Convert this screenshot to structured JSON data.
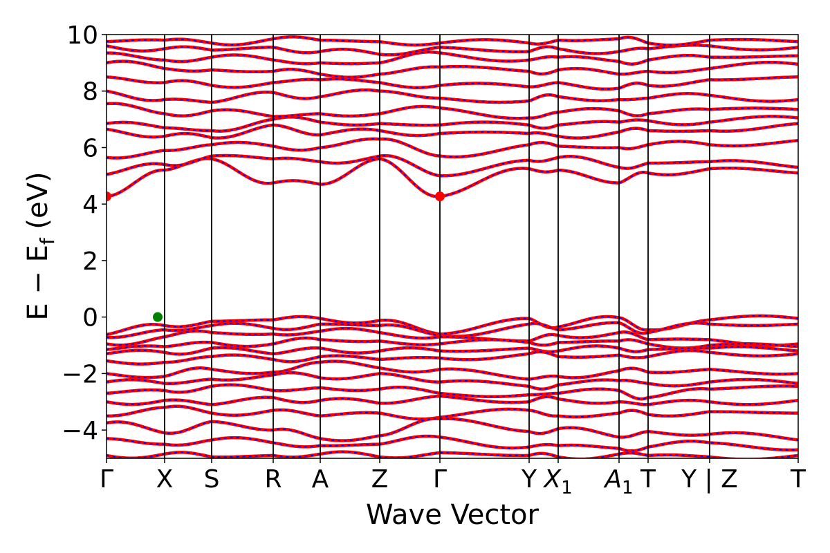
{
  "chart_data": {
    "type": "line",
    "title": "",
    "xlabel": "Wave Vector",
    "ylabel": {
      "base": "E − E",
      "sub": "f",
      "unit": " (eV)"
    },
    "ylim": [
      -5,
      10
    ],
    "yticks": [
      {
        "value": -4,
        "label": "−4"
      },
      {
        "value": -2,
        "label": "−2"
      },
      {
        "value": 0,
        "label": "0"
      },
      {
        "value": 2,
        "label": "2"
      },
      {
        "value": 4,
        "label": "4"
      },
      {
        "value": 6,
        "label": "6"
      },
      {
        "value": 8,
        "label": "8"
      },
      {
        "value": 10,
        "label": "10"
      }
    ],
    "grid": false,
    "kpoints": [
      {
        "label": "Γ",
        "sub": "",
        "pos": 0.0
      },
      {
        "label": "X",
        "sub": "",
        "pos": 0.84
      },
      {
        "label": "S",
        "sub": "",
        "pos": 1.52
      },
      {
        "label": "R",
        "sub": "",
        "pos": 2.41
      },
      {
        "label": "A",
        "sub": "",
        "pos": 3.09
      },
      {
        "label": "Z",
        "sub": "",
        "pos": 3.95
      },
      {
        "label": "Γ",
        "sub": "",
        "pos": 4.82
      },
      {
        "label": "Y",
        "sub": "",
        "pos": 6.11
      },
      {
        "label": "X",
        "sub": "1",
        "pos": 6.53
      },
      {
        "label": "A",
        "sub": "1",
        "pos": 7.41
      },
      {
        "label": "T",
        "sub": "",
        "pos": 7.83
      },
      {
        "label": "Y | Z",
        "sub": "",
        "pos": 8.72
      },
      {
        "label": "T",
        "sub": "",
        "pos": 10.0
      }
    ],
    "series": [
      {
        "style": "solid",
        "color": "#ff0000"
      },
      {
        "style": "dashed",
        "color": "#0000ff"
      }
    ],
    "band_gap_markers": [
      {
        "kind": "CBM",
        "k": 0.0,
        "e": 4.27,
        "color": "#ff0000"
      },
      {
        "kind": "CBM",
        "k": 4.82,
        "e": 4.27,
        "color": "#ff0000"
      },
      {
        "kind": "VBM",
        "k": 0.74,
        "e": 0.0,
        "color": "#008000"
      }
    ],
    "valence_bands": [
      [
        -0.62,
        -0.3,
        -0.15,
        -0.1,
        -0.05,
        -0.12,
        -0.6,
        -0.05,
        -0.35,
        -0.02,
        -0.45,
        -0.1,
        -0.05
      ],
      [
        -0.72,
        -0.45,
        -0.3,
        -0.4,
        -0.25,
        -0.3,
        -0.65,
        -0.25,
        -0.45,
        -0.2,
        -0.55,
        -0.25,
        -0.25
      ],
      [
        -0.95,
        -0.7,
        -0.55,
        -0.6,
        -0.5,
        -0.55,
        -0.7,
        -0.85,
        -0.65,
        -0.55,
        -0.8,
        -0.8,
        -0.95
      ],
      [
        -1.15,
        -1.05,
        -0.9,
        -0.95,
        -0.8,
        -0.85,
        -0.95,
        -0.9,
        -0.9,
        -0.85,
        -0.95,
        -1.0,
        -1.05
      ],
      [
        -1.3,
        -1.25,
        -1.1,
        -1.3,
        -1.1,
        -1.2,
        -1.2,
        -1.1,
        -1.2,
        -1.1,
        -1.15,
        -1.1,
        -1.2
      ],
      [
        -1.55,
        -1.6,
        -1.4,
        -1.5,
        -1.4,
        -1.5,
        -1.45,
        -1.3,
        -1.4,
        -1.35,
        -1.4,
        -1.25,
        -1.3
      ],
      [
        -2.0,
        -2.1,
        -1.85,
        -1.95,
        -1.6,
        -1.8,
        -1.85,
        -2.2,
        -2.1,
        -1.9,
        -1.95,
        -1.85,
        -2.0
      ],
      [
        -2.3,
        -2.35,
        -2.2,
        -2.05,
        -2.15,
        -2.0,
        -2.3,
        -2.45,
        -2.4,
        -2.25,
        -2.35,
        -2.3,
        -2.35
      ],
      [
        -2.7,
        -2.6,
        -2.45,
        -2.6,
        -2.5,
        -2.55,
        -2.7,
        -2.75,
        -2.7,
        -2.6,
        -2.85,
        -2.55,
        -2.45
      ],
      [
        -3.0,
        -2.95,
        -3.1,
        -2.85,
        -2.95,
        -3.05,
        -2.8,
        -3.0,
        -2.9,
        -3.0,
        -3.1,
        -3.0,
        -2.95
      ],
      [
        -3.5,
        -3.2,
        -3.4,
        -3.3,
        -3.5,
        -3.4,
        -3.55,
        -3.3,
        -3.5,
        -3.4,
        -3.45,
        -3.35,
        -3.4
      ],
      [
        -3.75,
        -4.1,
        -3.7,
        -4.0,
        -4.3,
        -4.2,
        -3.6,
        -4.05,
        -3.95,
        -4.25,
        -4.05,
        -4.15,
        -4.35
      ],
      [
        -4.3,
        -4.5,
        -4.35,
        -4.45,
        -4.55,
        -4.5,
        -4.25,
        -4.6,
        -4.55,
        -4.65,
        -4.6,
        -4.45,
        -4.7
      ],
      [
        -4.9,
        -4.85,
        -4.95,
        -4.9,
        -4.85,
        -4.95,
        -4.8,
        -4.9,
        -4.95,
        -4.85,
        -4.9,
        -4.95,
        -4.9
      ]
    ],
    "conduction_bands": [
      [
        4.27,
        5.2,
        5.6,
        4.75,
        4.7,
        5.6,
        4.27,
        5.25,
        5.2,
        4.75,
        5.1,
        5.25,
        5.1
      ],
      [
        5.05,
        5.4,
        5.7,
        5.6,
        5.5,
        5.7,
        5.0,
        5.55,
        5.65,
        5.3,
        5.45,
        5.5,
        5.3
      ],
      [
        5.65,
        5.9,
        6.1,
        6.05,
        6.0,
        6.3,
        5.7,
        6.1,
        6.05,
        6.0,
        6.1,
        6.1,
        6.25
      ],
      [
        6.65,
        6.4,
        6.35,
        6.8,
        6.45,
        6.6,
        6.5,
        6.5,
        6.4,
        6.55,
        6.6,
        6.6,
        6.85
      ],
      [
        6.85,
        6.7,
        6.6,
        7.0,
        6.9,
        6.85,
        6.8,
        6.8,
        6.8,
        6.9,
        6.95,
        6.9,
        7.05
      ],
      [
        7.55,
        7.2,
        7.3,
        7.1,
        7.2,
        7.2,
        7.4,
        7.05,
        7.25,
        7.3,
        7.2,
        7.35,
        7.35
      ],
      [
        8.0,
        7.7,
        7.6,
        7.95,
        7.8,
        8.0,
        7.75,
        7.65,
        7.8,
        7.7,
        7.75,
        7.85,
        7.7
      ],
      [
        8.5,
        8.3,
        8.2,
        8.3,
        8.4,
        8.3,
        8.2,
        8.15,
        8.3,
        8.1,
        8.2,
        8.4,
        8.5
      ],
      [
        9.0,
        8.8,
        8.75,
        8.7,
        8.6,
        8.6,
        8.85,
        8.7,
        8.75,
        8.6,
        8.7,
        8.8,
        8.95
      ],
      [
        9.35,
        9.1,
        9.2,
        9.1,
        9.0,
        9.0,
        9.35,
        9.1,
        9.2,
        9.05,
        9.1,
        9.2,
        9.25
      ],
      [
        9.6,
        9.5,
        9.45,
        9.55,
        9.4,
        9.3,
        9.55,
        9.4,
        9.5,
        9.4,
        9.5,
        9.6,
        9.55
      ],
      [
        9.75,
        9.8,
        9.7,
        9.85,
        9.8,
        9.75,
        9.7,
        9.7,
        9.8,
        9.85,
        9.7,
        9.8,
        9.75
      ]
    ]
  }
}
